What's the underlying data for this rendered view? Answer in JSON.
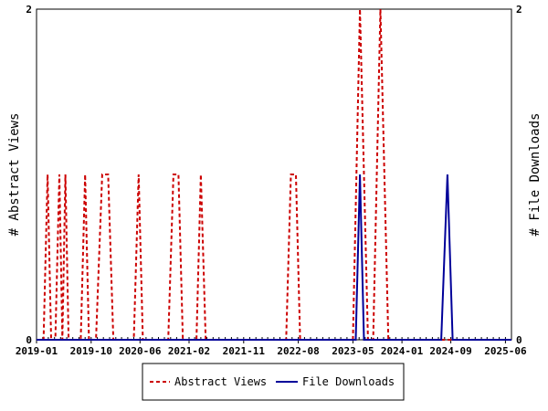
{
  "chart_data": {
    "type": "line",
    "ylabel_left": "# Abstract Views",
    "ylabel_right": "# File Downloads",
    "x_tick_labels": [
      "2019-01",
      "2019-10",
      "2020-06",
      "2021-02",
      "2021-11",
      "2022-08",
      "2023-05",
      "2024-01",
      "2024-09",
      "2025-06"
    ],
    "x_range": [
      "2019-01-01",
      "2025-07-01"
    ],
    "ylim_left": [
      0,
      2
    ],
    "ylim_right": [
      0,
      2
    ],
    "y_ticks_left": [
      "0",
      "2"
    ],
    "y_ticks_right": [
      "0",
      "2"
    ],
    "grid": false,
    "legend_position": "bottom-center",
    "series": [
      {
        "name": "Abstract Views",
        "color": "#cc0000",
        "dash": "dashed",
        "points": [
          [
            "2019-01-01",
            0
          ],
          [
            "2019-02-05",
            0
          ],
          [
            "2019-02-25",
            1
          ],
          [
            "2019-03-15",
            0
          ],
          [
            "2019-04-05",
            0
          ],
          [
            "2019-04-25",
            1
          ],
          [
            "2019-05-10",
            0
          ],
          [
            "2019-05-25",
            1
          ],
          [
            "2019-06-10",
            0
          ],
          [
            "2019-08-10",
            0
          ],
          [
            "2019-09-01",
            1
          ],
          [
            "2019-09-20",
            0
          ],
          [
            "2019-10-25",
            0
          ],
          [
            "2019-11-25",
            1
          ],
          [
            "2019-12-25",
            1
          ],
          [
            "2020-01-20",
            0
          ],
          [
            "2020-05-01",
            0
          ],
          [
            "2020-05-25",
            1
          ],
          [
            "2020-06-15",
            0
          ],
          [
            "2020-10-20",
            0
          ],
          [
            "2020-11-15",
            1
          ],
          [
            "2020-12-10",
            1
          ],
          [
            "2021-01-01",
            0
          ],
          [
            "2021-03-10",
            0
          ],
          [
            "2021-04-01",
            1
          ],
          [
            "2021-04-25",
            0
          ],
          [
            "2022-06-01",
            0
          ],
          [
            "2022-06-25",
            1
          ],
          [
            "2022-07-20",
            1
          ],
          [
            "2022-08-10",
            0
          ],
          [
            "2023-05-01",
            0
          ],
          [
            "2023-06-05",
            2
          ],
          [
            "2023-07-15",
            0
          ],
          [
            "2023-08-10",
            0
          ],
          [
            "2023-09-15",
            2
          ],
          [
            "2023-10-25",
            0
          ],
          [
            "2025-07-01",
            0
          ]
        ]
      },
      {
        "name": "File Downloads",
        "color": "#000099",
        "dash": "solid",
        "points": [
          [
            "2019-01-01",
            0
          ],
          [
            "2023-05-15",
            0
          ],
          [
            "2023-06-05",
            1
          ],
          [
            "2023-06-25",
            0
          ],
          [
            "2024-07-15",
            0
          ],
          [
            "2024-08-15",
            1
          ],
          [
            "2024-09-10",
            0
          ],
          [
            "2025-07-01",
            0
          ]
        ]
      }
    ]
  }
}
